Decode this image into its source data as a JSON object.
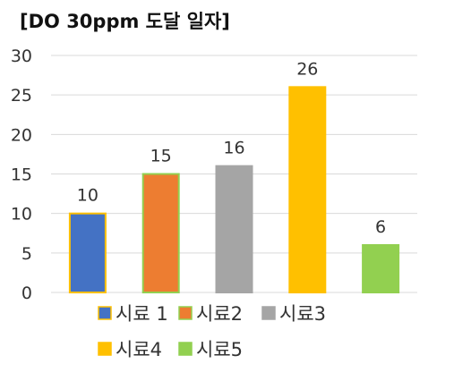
{
  "chart_data": {
    "type": "bar",
    "title": "[DO 30ppm 도달 일자]",
    "categories": [
      "시료 1",
      "시료2",
      "시료3",
      "시료4",
      "시료5"
    ],
    "values": [
      10,
      15,
      16,
      26,
      6
    ],
    "ylim": [
      0,
      30
    ],
    "yticks": [
      0,
      5,
      10,
      15,
      20,
      25,
      30
    ],
    "grid": true,
    "legend": "bottom",
    "colors": [
      "#4472C4",
      "#ED7D31",
      "#A5A5A5",
      "#FFC000",
      "#92D050"
    ],
    "outline_colors": [
      "#FFC000",
      "#92D050",
      "#A5A5A5",
      "#FFC000",
      "#92D050"
    ],
    "data_labels": true
  }
}
